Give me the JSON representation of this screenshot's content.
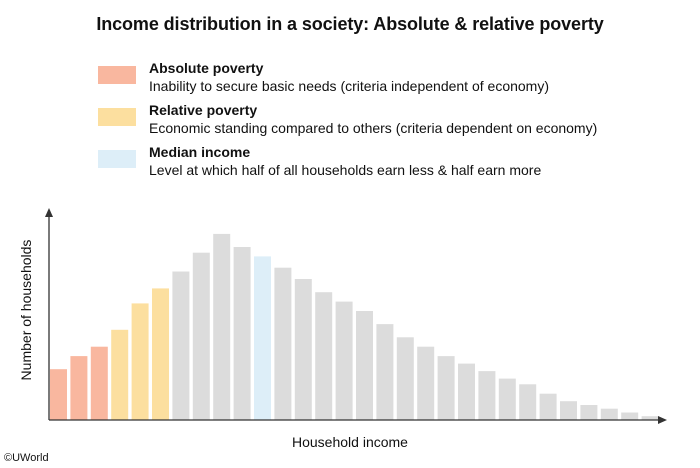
{
  "title": "Income distribution in a society: Absolute & relative poverty",
  "legend": [
    {
      "name": "Absolute poverty",
      "description": "Inability to secure basic needs (criteria independent of economy)",
      "color": "#f9b79f"
    },
    {
      "name": "Relative poverty",
      "description": "Economic standing compared to others (criteria dependent on economy)",
      "color": "#fcdf9f"
    },
    {
      "name": "Median income",
      "description": "Level at which half of all households earn less & half earn more",
      "color": "#ddeef8"
    }
  ],
  "credit": "©UWorld",
  "chart_data": {
    "type": "bar",
    "xlabel": "Household income",
    "ylabel": "Number of households",
    "ylim": [
      0,
      100
    ],
    "grid": false,
    "colors": {
      "absolute": "#f9b79f",
      "relative": "#fcdf9f",
      "median": "#ddeef8",
      "other": "#dcdcdc",
      "axis": "#333333"
    },
    "bars": [
      {
        "value": 27,
        "group": "absolute"
      },
      {
        "value": 34,
        "group": "absolute"
      },
      {
        "value": 39,
        "group": "absolute"
      },
      {
        "value": 48,
        "group": "relative"
      },
      {
        "value": 62,
        "group": "relative"
      },
      {
        "value": 70,
        "group": "relative"
      },
      {
        "value": 79,
        "group": "other"
      },
      {
        "value": 89,
        "group": "other"
      },
      {
        "value": 99,
        "group": "other"
      },
      {
        "value": 92,
        "group": "other"
      },
      {
        "value": 87,
        "group": "median"
      },
      {
        "value": 81,
        "group": "other"
      },
      {
        "value": 75,
        "group": "other"
      },
      {
        "value": 68,
        "group": "other"
      },
      {
        "value": 63,
        "group": "other"
      },
      {
        "value": 58,
        "group": "other"
      },
      {
        "value": 51,
        "group": "other"
      },
      {
        "value": 44,
        "group": "other"
      },
      {
        "value": 39,
        "group": "other"
      },
      {
        "value": 34,
        "group": "other"
      },
      {
        "value": 30,
        "group": "other"
      },
      {
        "value": 26,
        "group": "other"
      },
      {
        "value": 22,
        "group": "other"
      },
      {
        "value": 19,
        "group": "other"
      },
      {
        "value": 14,
        "group": "other"
      },
      {
        "value": 10,
        "group": "other"
      },
      {
        "value": 8,
        "group": "other"
      },
      {
        "value": 6,
        "group": "other"
      },
      {
        "value": 4,
        "group": "other"
      },
      {
        "value": 2,
        "group": "other"
      }
    ]
  }
}
